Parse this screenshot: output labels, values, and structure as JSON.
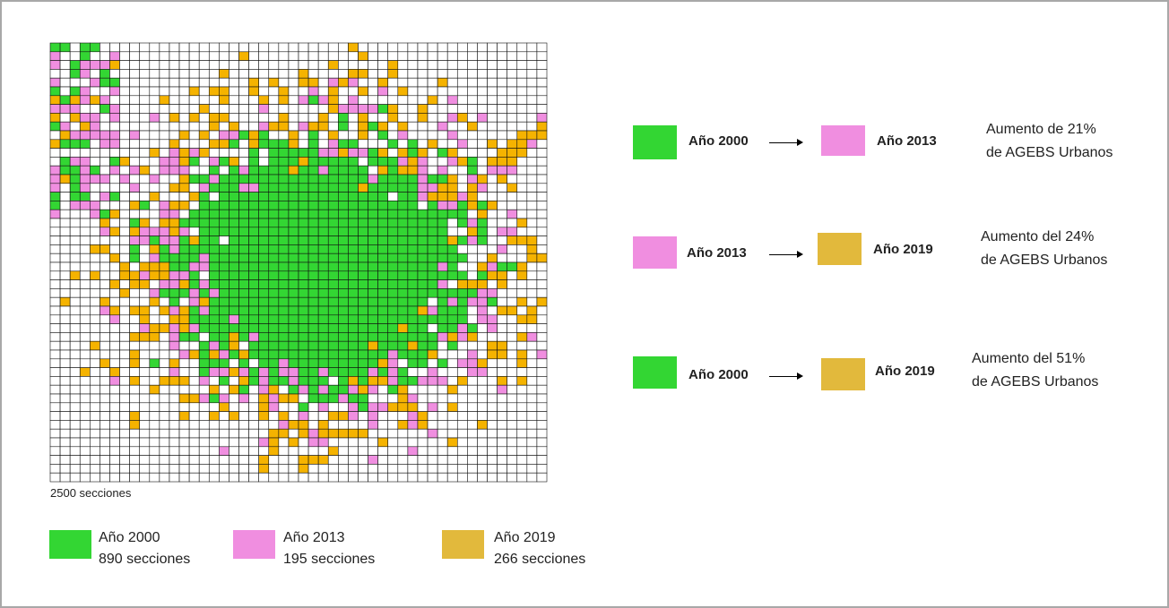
{
  "caption": "2500 secciones",
  "legend": [
    {
      "label": "Año 2000",
      "count": "890 secciones"
    },
    {
      "label": "Año 2013",
      "count": "195 secciones"
    },
    {
      "label": "Año 2019",
      "count": "266 secciones"
    }
  ],
  "transitions": [
    {
      "from": "Año 2000",
      "to": "Año 2013",
      "line1": "Aumento de 21%",
      "line2": "de AGEBS Urbanos"
    },
    {
      "from": "Año 2013",
      "to": "Año 2019",
      "line1": "Aumento del 24%",
      "line2": "de AGEBS Urbanos"
    },
    {
      "from": "Año 2000",
      "to": "Año 2019",
      "line1": "Aumento del 51%",
      "line2": "de AGEBS Urbanos"
    }
  ]
}
